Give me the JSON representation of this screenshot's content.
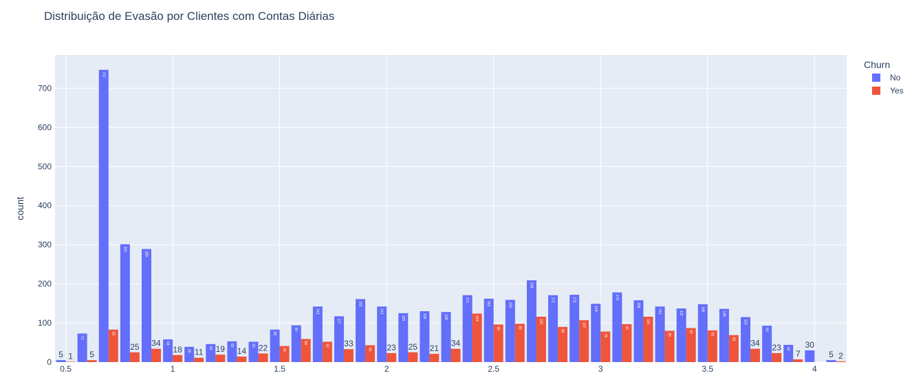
{
  "chart_data": {
    "type": "bar",
    "title": "Distribuição de Evasão por Clientes com Contas Diárias",
    "ylabel": "count",
    "xlabel": "",
    "x": [
      0.5,
      0.6,
      0.7,
      0.8,
      0.9,
      1.0,
      1.1,
      1.2,
      1.3,
      1.4,
      1.5,
      1.6,
      1.7,
      1.8,
      1.9,
      2.0,
      2.1,
      2.2,
      2.3,
      2.4,
      2.5,
      2.6,
      2.7,
      2.8,
      2.9,
      3.0,
      3.1,
      3.2,
      3.3,
      3.4,
      3.5,
      3.6,
      3.7,
      3.8,
      3.9,
      4.0,
      4.1
    ],
    "xlim": [
      0.45,
      4.15
    ],
    "ylim": [
      0,
      785
    ],
    "xticks": [
      0.5,
      1,
      1.5,
      2,
      2.5,
      3,
      3.5,
      4
    ],
    "xtick_labels": [
      "0.5",
      "1",
      "1.5",
      "2",
      "2.5",
      "3",
      "3.5",
      "4"
    ],
    "yticks": [
      0,
      100,
      200,
      300,
      400,
      500,
      600,
      700
    ],
    "ytick_labels": [
      "0",
      "100",
      "200",
      "300",
      "400",
      "500",
      "600",
      "700"
    ],
    "grid": true,
    "legend_title": "Churn",
    "legend_position": "top-right",
    "series": [
      {
        "name": "No",
        "color": "#636efa",
        "values": [
          5,
          73,
          747,
          301,
          289,
          58,
          39,
          46,
          53,
          52,
          83,
          94,
          142,
          117,
          161,
          142,
          125,
          130,
          128,
          171,
          162,
          159,
          209,
          171,
          172,
          149,
          178,
          158,
          142,
          137,
          148,
          136,
          115,
          93,
          44,
          30,
          5
        ],
        "labels": [
          "5",
          "73",
          "747",
          "301",
          "289",
          "58",
          "39",
          "46",
          "53",
          "52",
          "83",
          "94",
          "142",
          "117",
          "161",
          "142",
          "125",
          "130",
          "128",
          "171",
          "162",
          "159",
          "209",
          "171",
          "172",
          "149",
          "178",
          "158",
          "142",
          "137",
          "148",
          "136",
          "115",
          "93",
          "44",
          "30",
          "5"
        ]
      },
      {
        "name": "Yes",
        "color": "#ef553b",
        "values": [
          1,
          5,
          83,
          25,
          34,
          18,
          11,
          19,
          14,
          22,
          41,
          59,
          52,
          33,
          43,
          23,
          25,
          21,
          34,
          124,
          96,
          98,
          116,
          90,
          107,
          78,
          97,
          116,
          80,
          87,
          81,
          69,
          34,
          23,
          7,
          0,
          2
        ],
        "labels": [
          "1",
          "5",
          "83",
          "25",
          "34",
          "18",
          "11",
          "19",
          "14",
          "22",
          "41",
          "59",
          "52",
          "33",
          "43",
          "23",
          "25",
          "21",
          "34",
          "124",
          "96",
          "98",
          "116",
          "90",
          "107",
          "78",
          "97",
          "116",
          "80",
          "87",
          "81",
          "69",
          "34",
          "23",
          "7",
          "",
          "2"
        ]
      }
    ]
  }
}
